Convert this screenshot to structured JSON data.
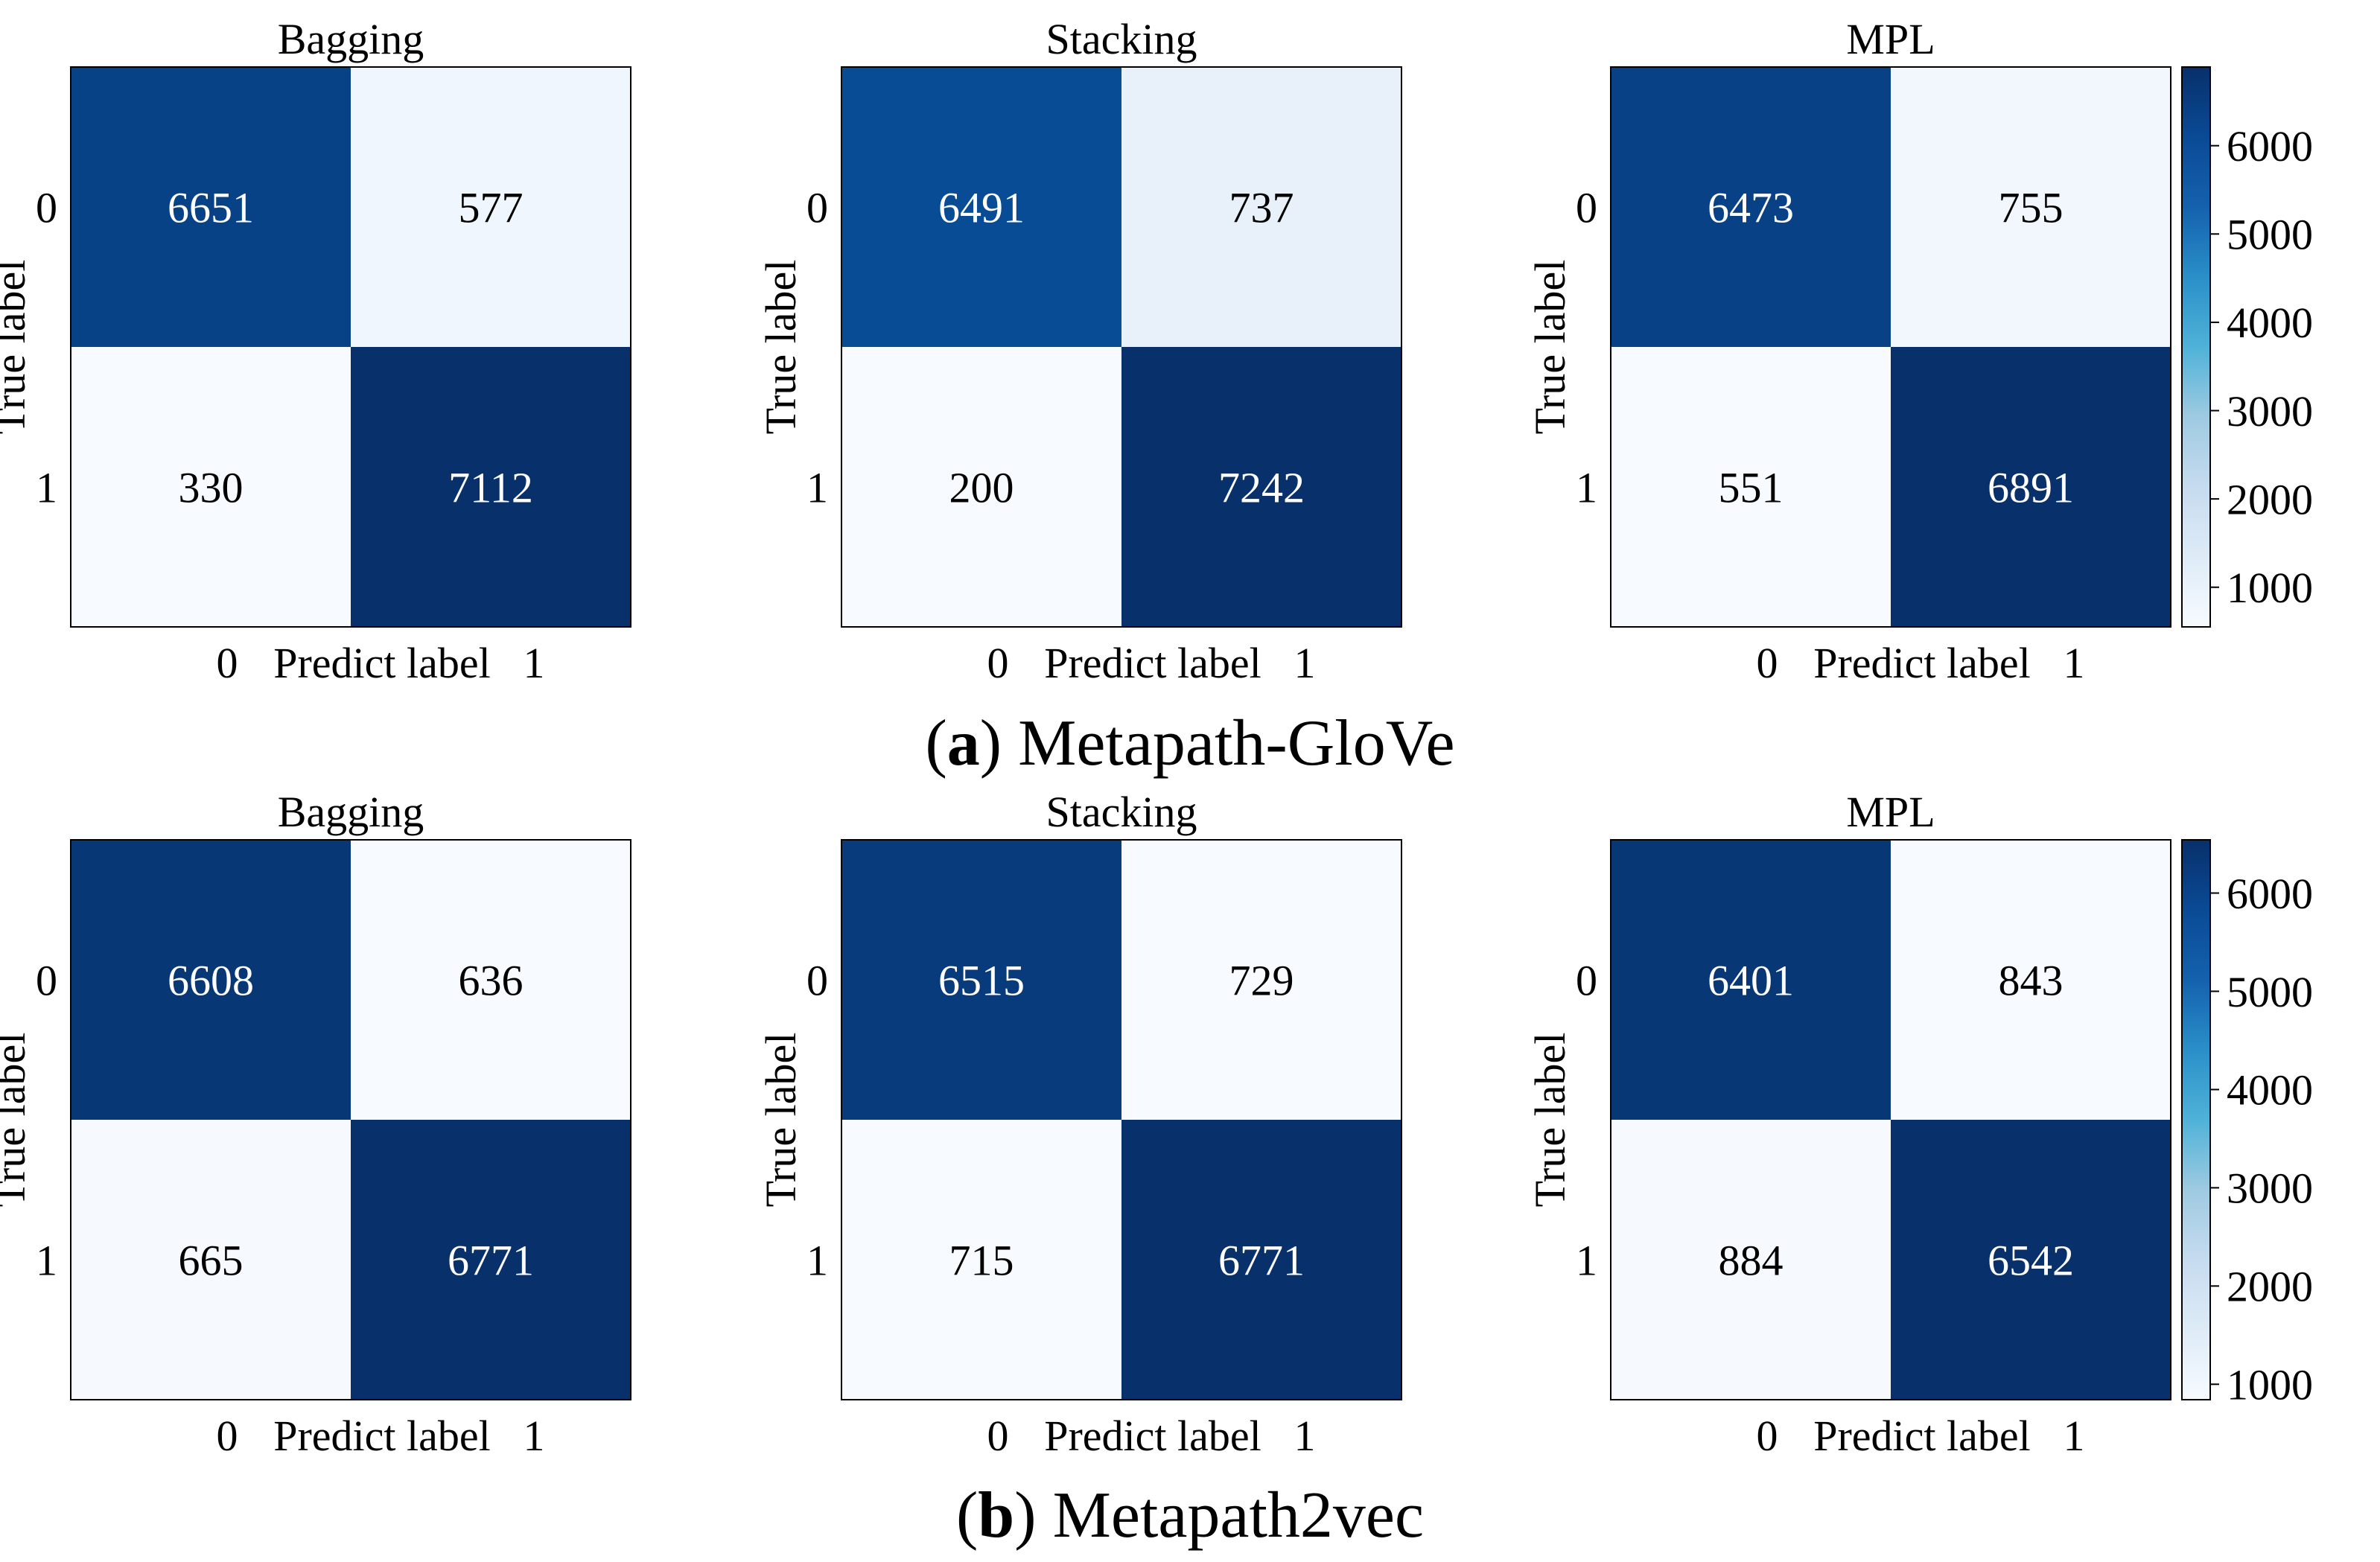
{
  "colors": {
    "cmap_light": "#f7fbff",
    "cmap_dark": "#08306b",
    "text_on_light": "#000000",
    "text_on_dark": "#ffffff"
  },
  "captions": [
    {
      "letter": "a",
      "text": " Metapath-GloVe"
    },
    {
      "letter": "b",
      "text": " Metapath2vec"
    }
  ],
  "chart_data": [
    {
      "type": "heatmap",
      "group": "a",
      "title": "Bagging",
      "xlabel": "Predict label",
      "ylabel": "True label",
      "x_ticks": [
        "0",
        "1"
      ],
      "y_ticks": [
        "0",
        "1"
      ],
      "matrix": [
        [
          6651,
          577
        ],
        [
          330,
          7112
        ]
      ],
      "colorbar": false
    },
    {
      "type": "heatmap",
      "group": "a",
      "title": "Stacking",
      "xlabel": "Predict label",
      "ylabel": "True label",
      "x_ticks": [
        "0",
        "1"
      ],
      "y_ticks": [
        "0",
        "1"
      ],
      "matrix": [
        [
          6491,
          737
        ],
        [
          200,
          7242
        ]
      ],
      "colorbar": false
    },
    {
      "type": "heatmap",
      "group": "a",
      "title": "MPL",
      "xlabel": "Predict label",
      "ylabel": "True label",
      "x_ticks": [
        "0",
        "1"
      ],
      "y_ticks": [
        "0",
        "1"
      ],
      "matrix": [
        [
          6473,
          755
        ],
        [
          551,
          6891
        ]
      ],
      "colorbar": true,
      "clim": [
        551,
        6891
      ],
      "colorbar_ticks": [
        "1000",
        "2000",
        "3000",
        "4000",
        "5000",
        "6000"
      ]
    },
    {
      "type": "heatmap",
      "group": "b",
      "title": "Bagging",
      "xlabel": "Predict label",
      "ylabel": "True label",
      "x_ticks": [
        "0",
        "1"
      ],
      "y_ticks": [
        "0",
        "1"
      ],
      "matrix": [
        [
          6608,
          636
        ],
        [
          665,
          6771
        ]
      ],
      "colorbar": false
    },
    {
      "type": "heatmap",
      "group": "b",
      "title": "Stacking",
      "xlabel": "Predict label",
      "ylabel": "True label",
      "x_ticks": [
        "0",
        "1"
      ],
      "y_ticks": [
        "0",
        "1"
      ],
      "matrix": [
        [
          6515,
          729
        ],
        [
          715,
          6771
        ]
      ],
      "colorbar": false
    },
    {
      "type": "heatmap",
      "group": "b",
      "title": "MPL",
      "xlabel": "Predict label",
      "ylabel": "True label",
      "x_ticks": [
        "0",
        "1"
      ],
      "y_ticks": [
        "0",
        "1"
      ],
      "matrix": [
        [
          6401,
          843
        ],
        [
          884,
          6542
        ]
      ],
      "colorbar": true,
      "clim": [
        843,
        6542
      ],
      "colorbar_ticks": [
        "1000",
        "2000",
        "3000",
        "4000",
        "5000",
        "6000"
      ]
    }
  ]
}
